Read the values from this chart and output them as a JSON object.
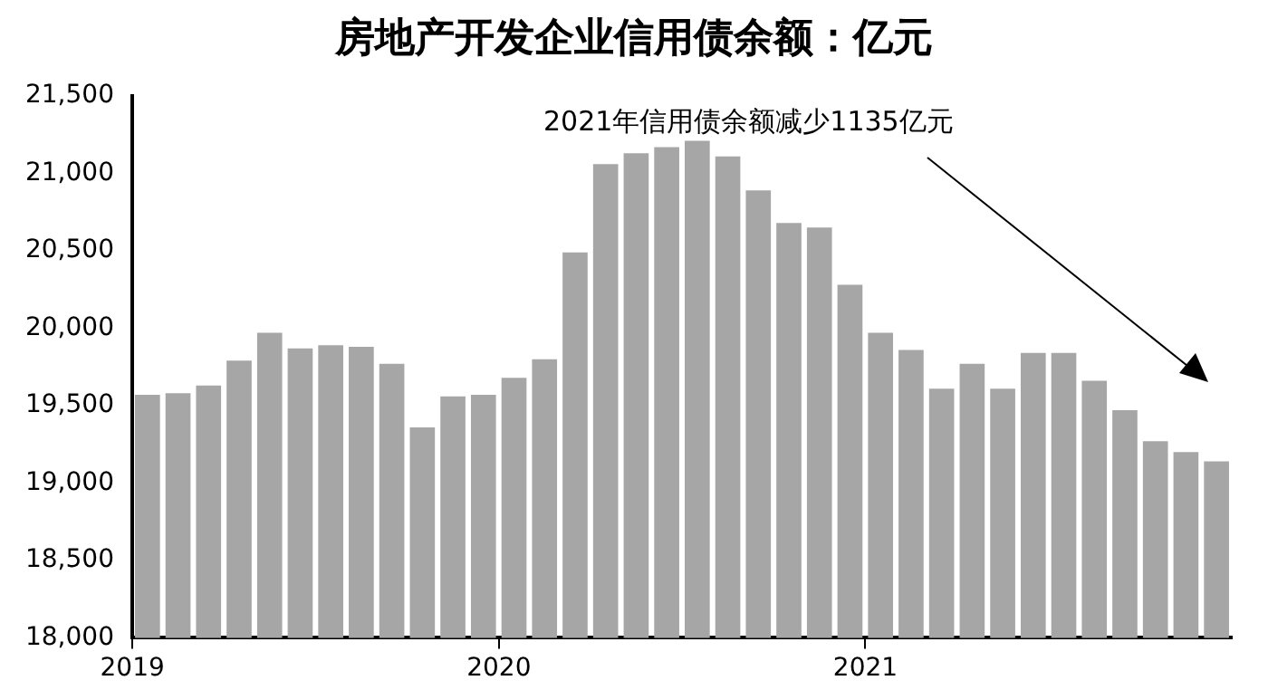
{
  "chart_data": {
    "type": "bar",
    "title": "房地产开发企业信用债余额：亿元",
    "categories": [
      "2019",
      null,
      null,
      null,
      null,
      null,
      null,
      null,
      null,
      null,
      null,
      null,
      "2020",
      null,
      null,
      null,
      null,
      null,
      null,
      null,
      null,
      null,
      null,
      null,
      "2021",
      null,
      null,
      null,
      null,
      null,
      null,
      null,
      null,
      null,
      null,
      null
    ],
    "values": [
      19570,
      19580,
      19630,
      19790,
      19970,
      19870,
      19890,
      19880,
      19770,
      19360,
      19560,
      19570,
      19680,
      19800,
      20490,
      21060,
      21130,
      21170,
      21210,
      21110,
      20890,
      20680,
      20650,
      20280,
      19970,
      19860,
      19610,
      19770,
      19610,
      19840,
      19840,
      19660,
      19470,
      19270,
      19200,
      19140
    ],
    "color": "#a6a6a6",
    "ylim": [
      18000,
      21500
    ],
    "yticks": [
      {
        "value": 18000,
        "label": "18,000"
      },
      {
        "value": 18500,
        "label": "18,500"
      },
      {
        "value": 19000,
        "label": "19,000"
      },
      {
        "value": 19500,
        "label": "19,500"
      },
      {
        "value": 20000,
        "label": "20,000"
      },
      {
        "value": 20500,
        "label": "20,500"
      },
      {
        "value": 21000,
        "label": "21,000"
      },
      {
        "value": 21500,
        "label": "21,500"
      }
    ],
    "annotations": [
      "2021年信用债余额减少1135亿元"
    ]
  }
}
